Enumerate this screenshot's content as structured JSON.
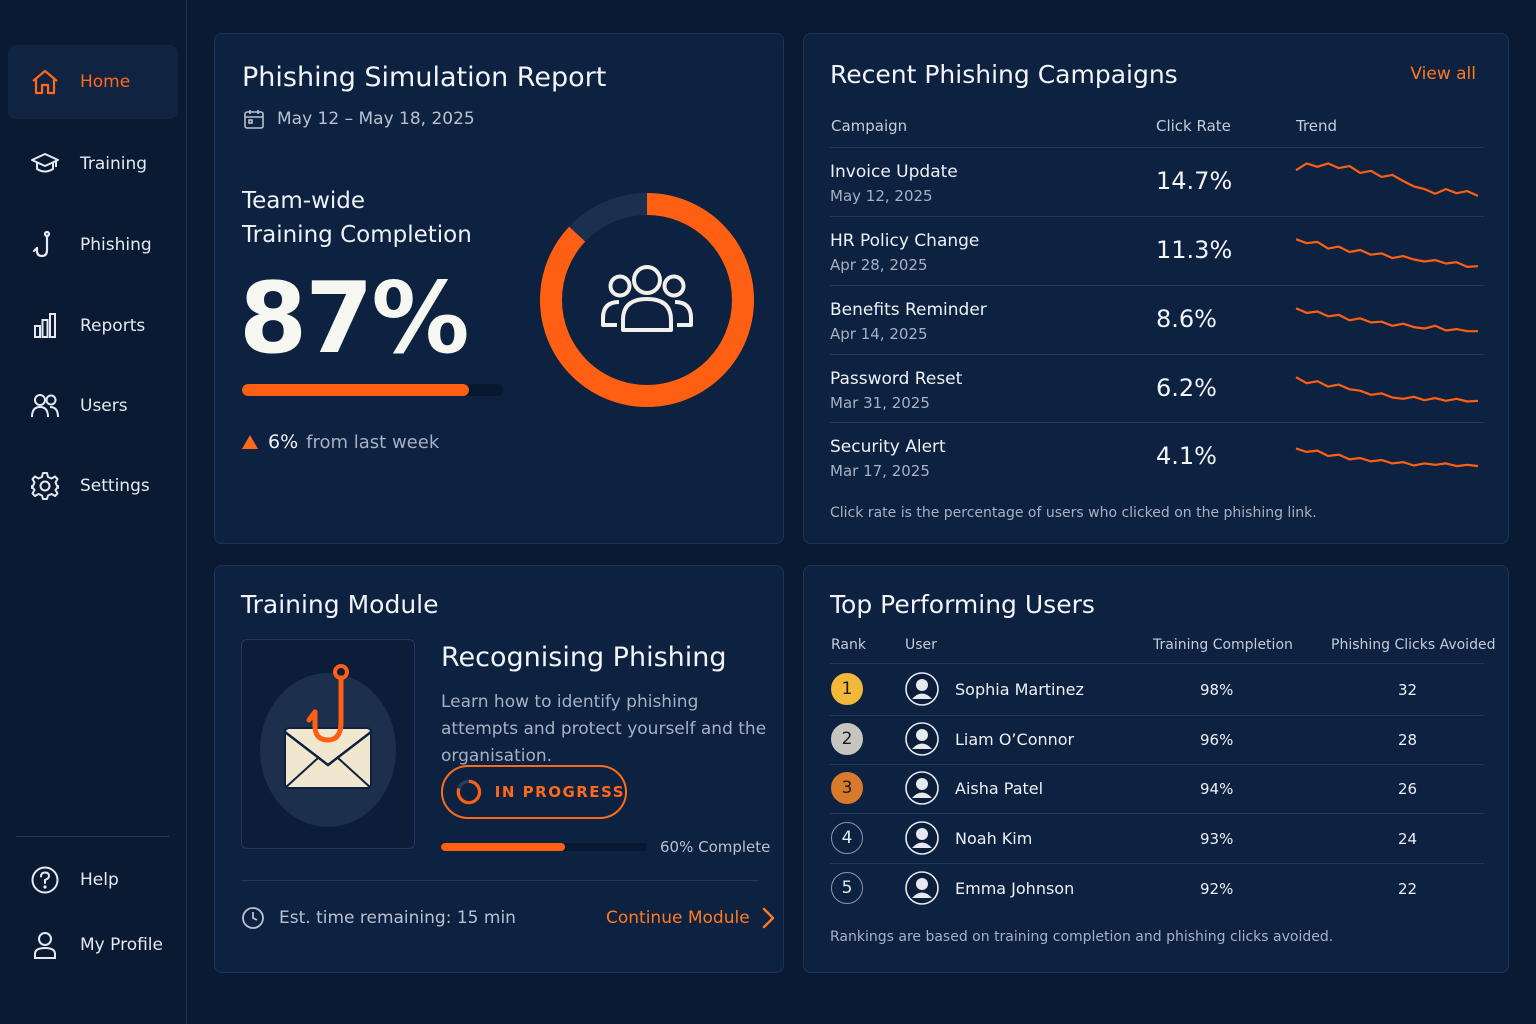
{
  "sidebar": {
    "items": [
      {
        "label": "Home",
        "icon": "home-icon"
      },
      {
        "label": "Training",
        "icon": "graduation-cap-icon"
      },
      {
        "label": "Phishing",
        "icon": "fish-hook-icon"
      },
      {
        "label": "Reports",
        "icon": "bar-chart-icon"
      },
      {
        "label": "Users",
        "icon": "users-icon"
      },
      {
        "label": "Settings",
        "icon": "gear-icon"
      }
    ],
    "bottom": [
      {
        "label": "Help",
        "icon": "help-icon"
      },
      {
        "label": "My Profile",
        "icon": "user-icon"
      }
    ],
    "active_color": "#ff6a1a"
  },
  "simulation": {
    "title": "Phishing Simulation Report",
    "date_range": "May 12 – May 18, 2025",
    "label_line1": "Team-wide",
    "label_line2": "Training Completion",
    "percent": "87%",
    "completion_fraction": 0.87,
    "delta_value": "6%",
    "delta_text": "from last week",
    "donut_icon": "users-group-icon"
  },
  "campaigns": {
    "title": "Recent Phishing Campaigns",
    "view_all": "View all",
    "headers": {
      "campaign": "Campaign",
      "click_rate": "Click Rate",
      "trend": "Trend"
    },
    "rows": [
      {
        "name": "Invoice Update",
        "date": "May 12, 2025",
        "rate": "14.7%",
        "trend": [
          9,
          10,
          9.5,
          10,
          9.3,
          9.6,
          8.6,
          8.9,
          8,
          8.3,
          7.4,
          6.6,
          6.2,
          5.5,
          6.2,
          5.6,
          5.9,
          5.2
        ]
      },
      {
        "name": "HR Policy Change",
        "date": "Apr 28, 2025",
        "rate": "11.3%",
        "trend": [
          9,
          8.4,
          8.6,
          7.6,
          7.9,
          7.1,
          7.4,
          6.7,
          6.9,
          6.2,
          6.5,
          6,
          5.7,
          5.9,
          5.4,
          5.6,
          4.9,
          5
        ]
      },
      {
        "name": "Benefits Reminder",
        "date": "Apr 14, 2025",
        "rate": "8.6%",
        "trend": [
          9,
          8.3,
          8.5,
          7.8,
          8,
          7.2,
          7.5,
          6.9,
          7,
          6.4,
          6.7,
          6.2,
          6,
          6.4,
          5.7,
          5.9,
          5.6,
          5.6
        ]
      },
      {
        "name": "Password Reset",
        "date": "Mar 31, 2025",
        "rate": "6.2%",
        "trend": [
          9,
          8.1,
          8.4,
          7.6,
          7.9,
          7.2,
          7,
          6.4,
          6.6,
          6,
          5.8,
          6.1,
          5.6,
          5.9,
          5.5,
          5.8,
          5.4,
          5.5
        ]
      },
      {
        "name": "Security Alert",
        "date": "Mar 17, 2025",
        "rate": "4.1%",
        "trend": [
          8.5,
          8,
          8.2,
          7.4,
          7.6,
          6.9,
          7.1,
          6.6,
          6.8,
          6.3,
          6.5,
          6,
          6.3,
          6.1,
          6.3,
          5.9,
          6.1,
          5.9
        ]
      }
    ],
    "footnote": "Click rate is the percentage of users who clicked on the phishing link.",
    "line_color": "#ff5f12"
  },
  "module": {
    "title": "Training Module",
    "name": "Recognising Phishing",
    "description": "Learn how to identify phishing attempts and protect yourself and the organisation.",
    "status": "IN PROGRESS",
    "progress_fraction": 0.6,
    "progress_label": "60% Complete",
    "est_time": "Est. time remaining: 15 min",
    "continue_label": "Continue Module",
    "illustration_icon": "envelope-hook-icon"
  },
  "top_users": {
    "title": "Top Performing Users",
    "headers": {
      "rank": "Rank",
      "user": "User",
      "completion": "Training Completion",
      "avoided": "Phishing Clicks Avoided"
    },
    "rows": [
      {
        "rank": "1",
        "name": "Sophia Martinez",
        "completion": "98%",
        "avoided": "32",
        "badge_color": "#f3b83a"
      },
      {
        "rank": "2",
        "name": "Liam O’Connor",
        "completion": "96%",
        "avoided": "28",
        "badge_color": "#c7c5bf"
      },
      {
        "rank": "3",
        "name": "Aisha Patel",
        "completion": "94%",
        "avoided": "26",
        "badge_color": "#d77a2a"
      },
      {
        "rank": "4",
        "name": "Noah Kim",
        "completion": "93%",
        "avoided": "24",
        "badge_color": ""
      },
      {
        "rank": "5",
        "name": "Emma Johnson",
        "completion": "92%",
        "avoided": "22",
        "badge_color": ""
      }
    ],
    "footnote": "Rankings are based on training completion and phishing clicks avoided."
  }
}
